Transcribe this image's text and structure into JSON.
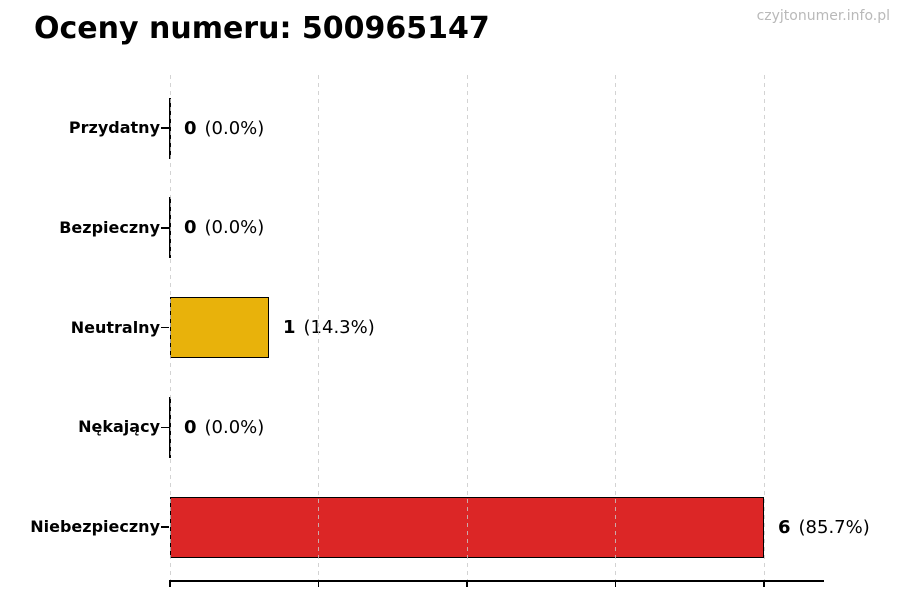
{
  "page": {
    "title": "Oceny numeru: 500965147",
    "watermark": "czyjtonumer.info.pl",
    "watermark_color": "#b9b9b9",
    "background_color": "#ffffff"
  },
  "chart_data": {
    "type": "bar",
    "orientation": "horizontal",
    "title": "Oceny numeru: 500965147",
    "categories": [
      "Przydatny",
      "Bezpieczny",
      "Neutralny",
      "Nękający",
      "Niebezpieczny"
    ],
    "values": [
      0,
      0,
      1,
      0,
      6
    ],
    "value_annotations": [
      {
        "count": "0",
        "percent": "(0.0%)"
      },
      {
        "count": "0",
        "percent": "(0.0%)"
      },
      {
        "count": "1",
        "percent": "(14.3%)"
      },
      {
        "count": "0",
        "percent": "(0.0%)"
      },
      {
        "count": "6",
        "percent": "(85.7%)"
      }
    ],
    "bar_fill_colors": [
      null,
      null,
      "#e8b20b",
      null,
      "#dc2626"
    ],
    "bar_edge_color": "#000000",
    "x_ticks": [
      0,
      1.5,
      3,
      4.5,
      6
    ],
    "x_tick_labels_visible": false,
    "xlim": [
      0,
      6.6
    ],
    "ylabel": "",
    "xlabel": "",
    "grid": "vertical-dashed",
    "grid_color": "#c8c8c8",
    "legend": "none"
  }
}
